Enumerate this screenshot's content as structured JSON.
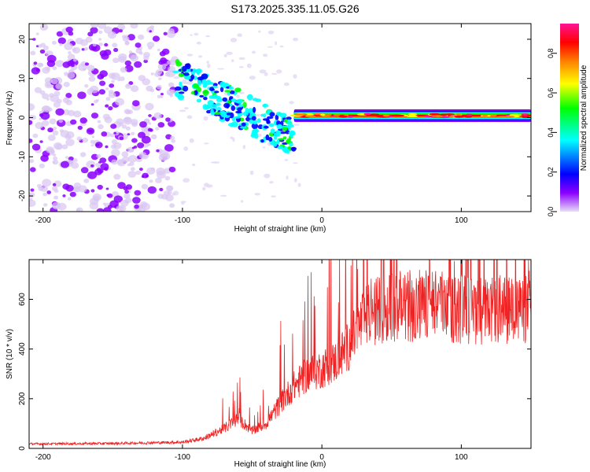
{
  "title": "S173.2025.335.11.05.G26",
  "chart_data": [
    {
      "type": "heatmap",
      "name": "spectrogram",
      "xlabel": "Height of straight line (km)",
      "ylabel": "Frequency (Hz)",
      "xlim": [
        -210,
        150
      ],
      "ylim": [
        -24,
        24
      ],
      "xticks": [
        -200,
        -100,
        0,
        100
      ],
      "yticks": [
        -20,
        -10,
        0,
        10,
        20
      ],
      "colorbar": {
        "label": "Normalized spectral amplitude",
        "range": [
          0,
          0.95
        ],
        "ticks": [
          "0.0",
          "0.2",
          "0.4",
          "0.6",
          "0.8"
        ],
        "tick_values": [
          0,
          0.2,
          0.4,
          0.6,
          0.8
        ],
        "colors": [
          "#e8ddf6",
          "#8b00ff",
          "#0000ff",
          "#00ffff",
          "#00ff00",
          "#ffff00",
          "#ff8000",
          "#ff0000",
          "#ff1493"
        ]
      },
      "features": [
        {
          "segment": "noise",
          "x_range": [
            -210,
            -105
          ],
          "freq_range": [
            -24,
            24
          ],
          "amplitude": 0.05
        },
        {
          "segment": "transition",
          "x_range": [
            -105,
            -20
          ],
          "freq_center_start": 10,
          "freq_center_end": -5,
          "amplitude": 0.25
        },
        {
          "segment": "tone",
          "x_range": [
            -20,
            150
          ],
          "freq_center": 0.5,
          "amplitude": 0.9
        }
      ]
    },
    {
      "type": "line",
      "name": "snr",
      "series": [
        {
          "name": "SNR",
          "color": "#ee2222"
        }
      ],
      "xlabel": "Height of straight line (km)",
      "ylabel": "SNR (10 * v/v)",
      "xlim": [
        -210,
        150
      ],
      "ylim": [
        0,
        760
      ],
      "xticks": [
        -200,
        -100,
        0,
        100
      ],
      "yticks": [
        0,
        200,
        400,
        600
      ],
      "x": [
        -210,
        -150,
        -100,
        -85,
        -70,
        -60,
        -50,
        -40,
        -30,
        -20,
        -10,
        0,
        10,
        20,
        30,
        40,
        60,
        80,
        100,
        120,
        150
      ],
      "values": [
        18,
        20,
        25,
        40,
        80,
        120,
        70,
        100,
        180,
        250,
        300,
        320,
        350,
        420,
        520,
        560,
        570,
        560,
        560,
        550,
        560
      ]
    }
  ]
}
